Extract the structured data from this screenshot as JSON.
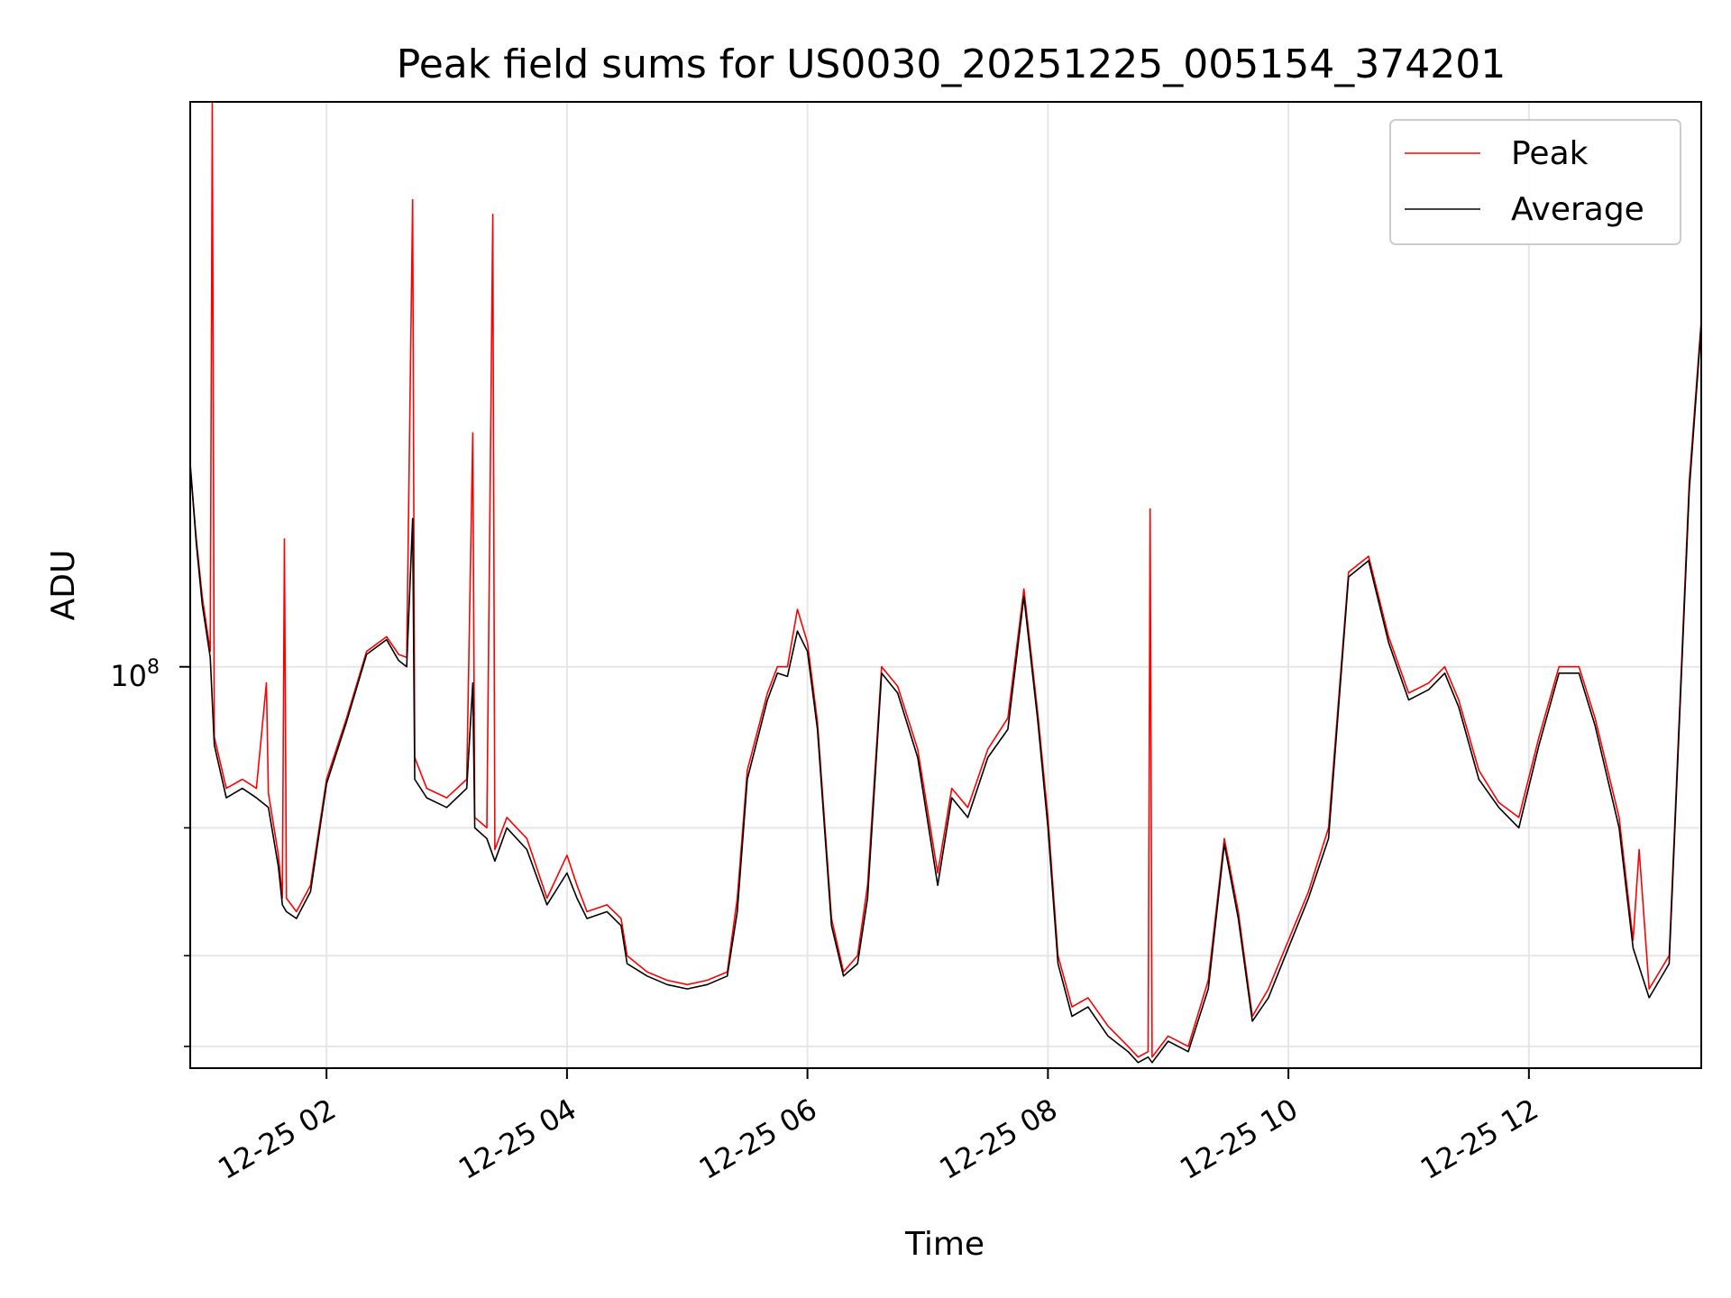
{
  "chart_data": {
    "type": "line",
    "title": "Peak field sums for US0030_20251225_005154_374201",
    "xlabel": "Time",
    "ylabel": "ADU",
    "y_scale": "log",
    "y_major_tick": {
      "value": 100000000,
      "label_base": "10",
      "label_exp": "8"
    },
    "y_minor_ticks": [
      30000000,
      40000000,
      60000000
    ],
    "ylim": [
      28000000,
      600000000
    ],
    "xlim": [
      "12-25 00:52",
      "12-25 13:26"
    ],
    "x_ticks": [
      {
        "time": "12-25 02:00",
        "label": "12-25 02"
      },
      {
        "time": "12-25 04:00",
        "label": "12-25 04"
      },
      {
        "time": "12-25 06:00",
        "label": "12-25 06"
      },
      {
        "time": "12-25 08:00",
        "label": "12-25 08"
      },
      {
        "time": "12-25 10:00",
        "label": "12-25 10"
      },
      {
        "time": "12-25 12:00",
        "label": "12-25 12"
      }
    ],
    "grid": true,
    "legend_position": "top-right",
    "series": [
      {
        "name": "Peak",
        "color": "#ff0000",
        "points": [
          [
            "00:52",
            190000000
          ],
          [
            "00:55",
            150000000
          ],
          [
            "00:58",
            125000000
          ],
          [
            "01:02",
            105000000
          ],
          [
            "01:03",
            600000000
          ],
          [
            "01:04",
            80000000
          ],
          [
            "01:10",
            68000000
          ],
          [
            "01:18",
            70000000
          ],
          [
            "01:25",
            68000000
          ],
          [
            "01:30",
            95000000
          ],
          [
            "01:31",
            67000000
          ],
          [
            "01:36",
            55000000
          ],
          [
            "01:38",
            48000000
          ],
          [
            "01:39",
            150000000
          ],
          [
            "01:40",
            48000000
          ],
          [
            "01:45",
            46000000
          ],
          [
            "01:52",
            50000000
          ],
          [
            "02:00",
            70000000
          ],
          [
            "02:10",
            85000000
          ],
          [
            "02:20",
            105000000
          ],
          [
            "02:30",
            110000000
          ],
          [
            "02:36",
            104000000
          ],
          [
            "02:40",
            103000000
          ],
          [
            "02:43",
            440000000
          ],
          [
            "02:44",
            75000000
          ],
          [
            "02:50",
            68000000
          ],
          [
            "03:00",
            66000000
          ],
          [
            "03:10",
            70000000
          ],
          [
            "03:13",
            210000000
          ],
          [
            "03:14",
            62000000
          ],
          [
            "03:20",
            60000000
          ],
          [
            "03:23",
            420000000
          ],
          [
            "03:24",
            56000000
          ],
          [
            "03:30",
            62000000
          ],
          [
            "03:40",
            58000000
          ],
          [
            "03:50",
            48000000
          ],
          [
            "04:00",
            55000000
          ],
          [
            "04:05",
            50000000
          ],
          [
            "04:10",
            46000000
          ],
          [
            "04:20",
            47000000
          ],
          [
            "04:27",
            45000000
          ],
          [
            "04:30",
            40000000
          ],
          [
            "04:40",
            38000000
          ],
          [
            "04:50",
            37000000
          ],
          [
            "05:00",
            36500000
          ],
          [
            "05:10",
            37000000
          ],
          [
            "05:20",
            38000000
          ],
          [
            "05:25",
            48000000
          ],
          [
            "05:30",
            72000000
          ],
          [
            "05:40",
            92000000
          ],
          [
            "05:45",
            100000000
          ],
          [
            "05:50",
            100000000
          ],
          [
            "05:55",
            120000000
          ],
          [
            "06:00",
            108000000
          ],
          [
            "06:05",
            84000000
          ],
          [
            "06:12",
            45000000
          ],
          [
            "06:18",
            38000000
          ],
          [
            "06:25",
            40000000
          ],
          [
            "06:30",
            50000000
          ],
          [
            "06:37",
            100000000
          ],
          [
            "06:45",
            94000000
          ],
          [
            "06:55",
            77000000
          ],
          [
            "07:05",
            52000000
          ],
          [
            "07:12",
            68000000
          ],
          [
            "07:20",
            64000000
          ],
          [
            "07:30",
            77000000
          ],
          [
            "07:40",
            85000000
          ],
          [
            "07:48",
            128000000
          ],
          [
            "07:55",
            86000000
          ],
          [
            "08:00",
            62000000
          ],
          [
            "08:05",
            40000000
          ],
          [
            "08:12",
            34000000
          ],
          [
            "08:20",
            35000000
          ],
          [
            "08:30",
            32000000
          ],
          [
            "08:40",
            30000000
          ],
          [
            "08:45",
            29000000
          ],
          [
            "08:50",
            29500000
          ],
          [
            "08:51",
            165000000
          ],
          [
            "08:52",
            29000000
          ],
          [
            "09:00",
            31000000
          ],
          [
            "09:10",
            30000000
          ],
          [
            "09:20",
            37000000
          ],
          [
            "09:28",
            58000000
          ],
          [
            "09:35",
            46000000
          ],
          [
            "09:42",
            33000000
          ],
          [
            "09:50",
            36000000
          ],
          [
            "10:00",
            42000000
          ],
          [
            "10:10",
            49000000
          ],
          [
            "10:20",
            60000000
          ],
          [
            "10:30",
            135000000
          ],
          [
            "10:40",
            142000000
          ],
          [
            "10:50",
            110000000
          ],
          [
            "11:00",
            92000000
          ],
          [
            "11:10",
            95000000
          ],
          [
            "11:18",
            100000000
          ],
          [
            "11:25",
            90000000
          ],
          [
            "11:35",
            72000000
          ],
          [
            "11:45",
            65000000
          ],
          [
            "11:55",
            62000000
          ],
          [
            "12:05",
            80000000
          ],
          [
            "12:15",
            100000000
          ],
          [
            "12:25",
            100000000
          ],
          [
            "12:33",
            85000000
          ],
          [
            "12:45",
            62000000
          ],
          [
            "12:52",
            42000000
          ],
          [
            "12:55",
            56000000
          ],
          [
            "13:00",
            36000000
          ],
          [
            "13:10",
            40000000
          ],
          [
            "13:20",
            180000000
          ],
          [
            "13:26",
            300000000
          ]
        ]
      },
      {
        "name": "Average",
        "color": "#000000",
        "points": [
          [
            "00:52",
            190000000
          ],
          [
            "00:55",
            148000000
          ],
          [
            "00:58",
            122000000
          ],
          [
            "01:02",
            103000000
          ],
          [
            "01:04",
            78000000
          ],
          [
            "01:10",
            66000000
          ],
          [
            "01:18",
            68000000
          ],
          [
            "01:25",
            66000000
          ],
          [
            "01:31",
            64000000
          ],
          [
            "01:36",
            53000000
          ],
          [
            "01:38",
            47000000
          ],
          [
            "01:40",
            46000000
          ],
          [
            "01:45",
            45000000
          ],
          [
            "01:52",
            49000000
          ],
          [
            "02:00",
            69000000
          ],
          [
            "02:10",
            84000000
          ],
          [
            "02:20",
            104000000
          ],
          [
            "02:30",
            109000000
          ],
          [
            "02:36",
            102000000
          ],
          [
            "02:40",
            100000000
          ],
          [
            "02:43",
            160000000
          ],
          [
            "02:44",
            70000000
          ],
          [
            "02:50",
            66000000
          ],
          [
            "03:00",
            64000000
          ],
          [
            "03:10",
            68000000
          ],
          [
            "03:13",
            95000000
          ],
          [
            "03:14",
            60000000
          ],
          [
            "03:20",
            58000000
          ],
          [
            "03:24",
            54000000
          ],
          [
            "03:30",
            60000000
          ],
          [
            "03:40",
            56000000
          ],
          [
            "03:50",
            47000000
          ],
          [
            "04:00",
            52000000
          ],
          [
            "04:05",
            48000000
          ],
          [
            "04:10",
            45000000
          ],
          [
            "04:20",
            46000000
          ],
          [
            "04:27",
            44000000
          ],
          [
            "04:30",
            39000000
          ],
          [
            "04:40",
            37500000
          ],
          [
            "04:50",
            36500000
          ],
          [
            "05:00",
            36000000
          ],
          [
            "05:10",
            36500000
          ],
          [
            "05:20",
            37500000
          ],
          [
            "05:25",
            46000000
          ],
          [
            "05:30",
            70000000
          ],
          [
            "05:40",
            90000000
          ],
          [
            "05:45",
            98000000
          ],
          [
            "05:50",
            97000000
          ],
          [
            "05:55",
            112000000
          ],
          [
            "06:00",
            105000000
          ],
          [
            "06:05",
            82000000
          ],
          [
            "06:12",
            44000000
          ],
          [
            "06:18",
            37500000
          ],
          [
            "06:25",
            39000000
          ],
          [
            "06:30",
            48000000
          ],
          [
            "06:37",
            98000000
          ],
          [
            "06:45",
            92000000
          ],
          [
            "06:55",
            75000000
          ],
          [
            "07:05",
            50000000
          ],
          [
            "07:12",
            66000000
          ],
          [
            "07:20",
            62000000
          ],
          [
            "07:30",
            75000000
          ],
          [
            "07:40",
            82000000
          ],
          [
            "07:48",
            125000000
          ],
          [
            "07:55",
            84000000
          ],
          [
            "08:00",
            60000000
          ],
          [
            "08:05",
            39000000
          ],
          [
            "08:12",
            33000000
          ],
          [
            "08:20",
            34000000
          ],
          [
            "08:30",
            31000000
          ],
          [
            "08:40",
            29500000
          ],
          [
            "08:45",
            28500000
          ],
          [
            "08:50",
            29000000
          ],
          [
            "08:52",
            28500000
          ],
          [
            "09:00",
            30500000
          ],
          [
            "09:10",
            29500000
          ],
          [
            "09:20",
            36000000
          ],
          [
            "09:28",
            57000000
          ],
          [
            "09:35",
            45000000
          ],
          [
            "09:42",
            32500000
          ],
          [
            "09:50",
            35000000
          ],
          [
            "10:00",
            41000000
          ],
          [
            "10:10",
            48000000
          ],
          [
            "10:20",
            58000000
          ],
          [
            "10:30",
            133000000
          ],
          [
            "10:40",
            140000000
          ],
          [
            "10:50",
            108000000
          ],
          [
            "11:00",
            90000000
          ],
          [
            "11:10",
            93000000
          ],
          [
            "11:18",
            98000000
          ],
          [
            "11:25",
            88000000
          ],
          [
            "11:35",
            70000000
          ],
          [
            "11:45",
            64000000
          ],
          [
            "11:55",
            60000000
          ],
          [
            "12:05",
            78000000
          ],
          [
            "12:15",
            98000000
          ],
          [
            "12:25",
            98000000
          ],
          [
            "12:33",
            83000000
          ],
          [
            "12:45",
            60000000
          ],
          [
            "12:52",
            41000000
          ],
          [
            "13:00",
            35000000
          ],
          [
            "13:10",
            39000000
          ],
          [
            "13:20",
            175000000
          ],
          [
            "13:26",
            295000000
          ]
        ]
      }
    ]
  }
}
